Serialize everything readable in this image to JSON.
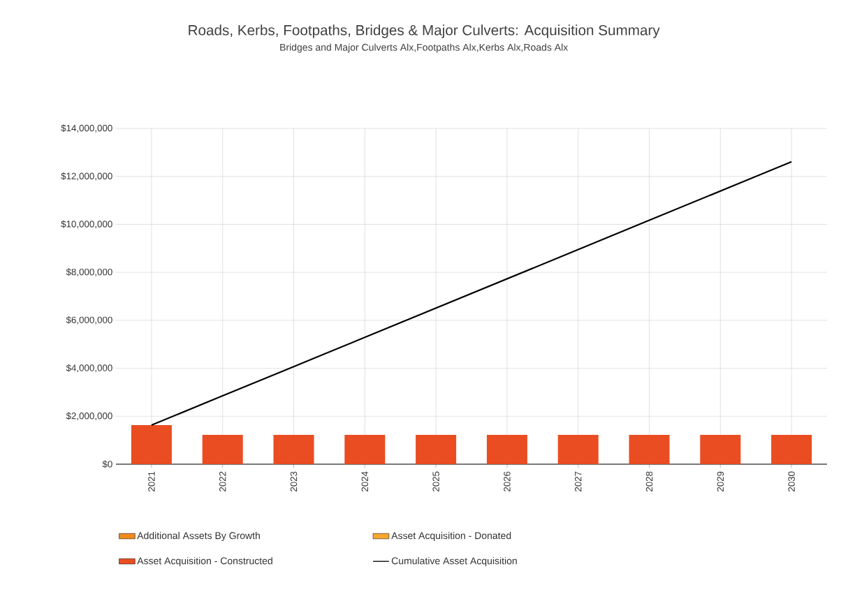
{
  "chart_data": {
    "type": "bar",
    "title": "Roads, Kerbs, Footpaths, Bridges & Major Culverts: Acquisition Summary",
    "subtitle": "Bridges and Major Culverts Alx,Footpaths Alx,Kerbs Alx,Roads Alx",
    "categories": [
      "2021",
      "2022",
      "2023",
      "2024",
      "2025",
      "2026",
      "2027",
      "2028",
      "2029",
      "2030"
    ],
    "series": [
      {
        "name": "Additional Assets By Growth",
        "color": "#f28a1c",
        "values": [
          null,
          null,
          null,
          null,
          null,
          null,
          null,
          null,
          null,
          null
        ]
      },
      {
        "name": "Asset Acquisition - Donated",
        "color": "#f9a82e",
        "values": [
          null,
          null,
          null,
          null,
          null,
          null,
          null,
          null,
          null,
          null
        ]
      },
      {
        "name": "Asset Acquisition - Constructed",
        "color": "#ea4d22",
        "values": [
          1630000,
          1220000,
          1220000,
          1220000,
          1220000,
          1220000,
          1220000,
          1220000,
          1220000,
          1220000
        ]
      },
      {
        "name": "Cumulative Asset Acquisition",
        "type": "line",
        "color": "#000000",
        "values": [
          1630000,
          2850000,
          4070000,
          5290000,
          6510000,
          7730000,
          8950000,
          10170000,
          11390000,
          12610000
        ]
      }
    ],
    "ylim": [
      0,
      14000000
    ],
    "yticks": [
      {
        "value": 0,
        "label": "$0"
      },
      {
        "value": 2000000,
        "label": "$2,000,000"
      },
      {
        "value": 4000000,
        "label": "$4,000,000"
      },
      {
        "value": 6000000,
        "label": "$6,000,000"
      },
      {
        "value": 8000000,
        "label": "$8,000,000"
      },
      {
        "value": 10000000,
        "label": "$10,000,000"
      },
      {
        "value": 12000000,
        "label": "$12,000,000"
      },
      {
        "value": 14000000,
        "label": "$14,000,000"
      }
    ],
    "grid": true,
    "legend": "bottom"
  }
}
